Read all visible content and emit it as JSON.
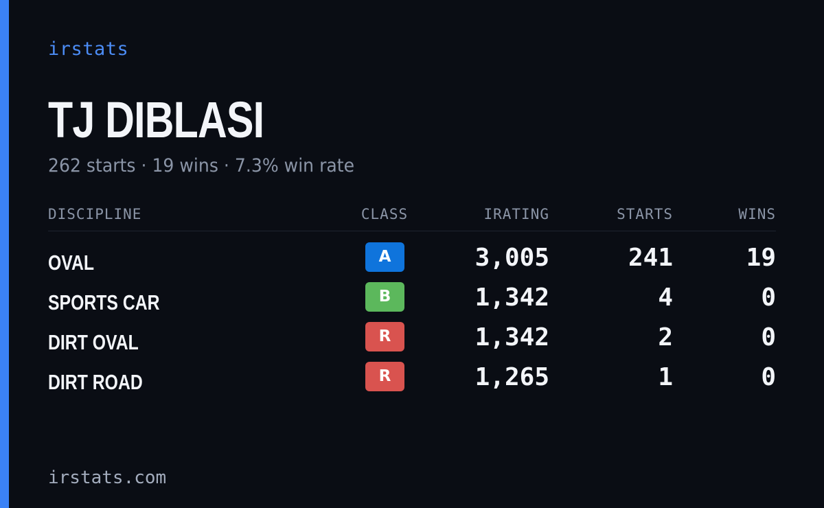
{
  "brand": "irstats",
  "player": {
    "name": "TJ DIBLASI",
    "starts_text": "262 starts",
    "wins_text": "19 wins",
    "win_rate_text": "7.3% win rate",
    "separator": "·"
  },
  "table": {
    "headers": {
      "discipline": "DISCIPLINE",
      "class": "CLASS",
      "irating": "IRATING",
      "starts": "STARTS",
      "wins": "WINS"
    },
    "rows": [
      {
        "discipline": "OVAL",
        "class": "A",
        "class_color": "#0f74dc",
        "irating": "3,005",
        "starts": "241",
        "wins": "19"
      },
      {
        "discipline": "SPORTS CAR",
        "class": "B",
        "class_color": "#5cb85c",
        "irating": "1,342",
        "starts": "4",
        "wins": "0"
      },
      {
        "discipline": "DIRT OVAL",
        "class": "R",
        "class_color": "#d9534f",
        "irating": "1,342",
        "starts": "2",
        "wins": "0"
      },
      {
        "discipline": "DIRT ROAD",
        "class": "R",
        "class_color": "#d9534f",
        "irating": "1,265",
        "starts": "1",
        "wins": "0"
      }
    ]
  },
  "footer": "irstats.com"
}
